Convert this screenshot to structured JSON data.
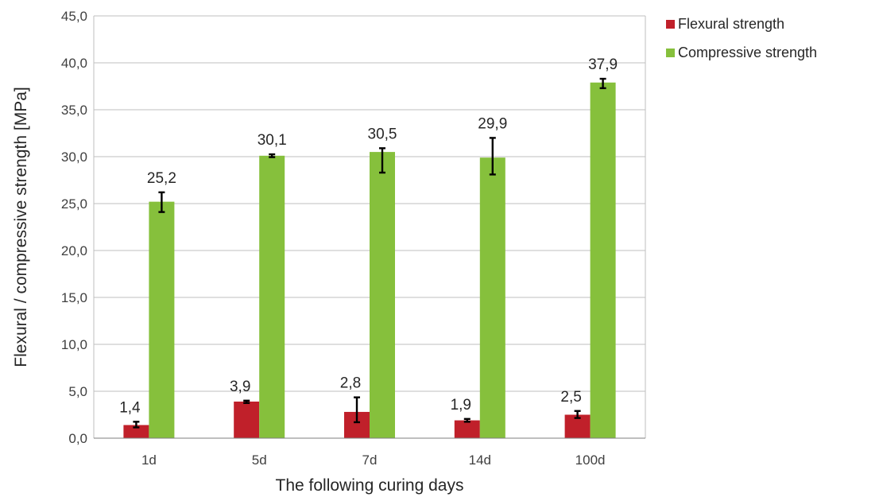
{
  "chart_data": {
    "type": "bar",
    "categories": [
      "1d",
      "5d",
      "7d",
      "14d",
      "100d"
    ],
    "series": [
      {
        "name": "Flexural strength",
        "color": "#c0202a",
        "values": [
          1.4,
          3.9,
          2.8,
          1.9,
          2.5
        ],
        "labels": [
          "1,4",
          "3,9",
          "2,8",
          "1,9",
          "2,5"
        ],
        "err_low": [
          1.15,
          3.75,
          1.7,
          1.75,
          2.15
        ],
        "err_high": [
          1.75,
          4.0,
          4.35,
          2.05,
          2.9
        ]
      },
      {
        "name": "Compressive strength",
        "color": "#86c03c",
        "values": [
          25.2,
          30.1,
          30.5,
          29.9,
          37.9
        ],
        "labels": [
          "25,2",
          "30,1",
          "30,5",
          "29,9",
          "37,9"
        ],
        "err_low": [
          24.1,
          29.95,
          28.3,
          28.1,
          37.3
        ],
        "err_high": [
          26.2,
          30.25,
          30.9,
          32.0,
          38.3
        ]
      }
    ],
    "ylim": [
      0,
      45
    ],
    "yticks": [
      0,
      5,
      10,
      15,
      20,
      25,
      30,
      35,
      40,
      45
    ],
    "ytick_labels": [
      "0,0",
      "5,0",
      "10,0",
      "15,0",
      "20,0",
      "25,0",
      "30,0",
      "35,0",
      "40,0",
      "45,0"
    ],
    "xlabel": "The following curing days",
    "ylabel": "Flexural / compressive strength [MPa]",
    "grid": true,
    "legend_position": "top-right"
  }
}
